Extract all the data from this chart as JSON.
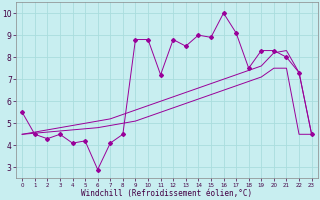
{
  "xlabel": "Windchill (Refroidissement éolien,°C)",
  "x": [
    0,
    1,
    2,
    3,
    4,
    5,
    6,
    7,
    8,
    9,
    10,
    11,
    12,
    13,
    14,
    15,
    16,
    17,
    18,
    19,
    20,
    21,
    22,
    23
  ],
  "y_main": [
    5.5,
    4.5,
    4.3,
    4.5,
    4.1,
    4.2,
    2.9,
    4.1,
    4.5,
    8.8,
    8.8,
    7.2,
    8.8,
    8.5,
    9.0,
    8.9,
    10.0,
    9.1,
    7.5,
    8.3,
    8.3,
    8.0,
    7.3,
    4.5
  ],
  "y_smooth1": [
    4.5,
    4.6,
    4.7,
    4.8,
    4.9,
    5.0,
    5.1,
    5.2,
    5.4,
    5.6,
    5.8,
    6.0,
    6.2,
    6.4,
    6.6,
    6.8,
    7.0,
    7.2,
    7.4,
    7.6,
    8.2,
    8.3,
    7.3,
    4.5
  ],
  "y_smooth2": [
    4.5,
    4.55,
    4.6,
    4.65,
    4.7,
    4.75,
    4.8,
    4.9,
    5.0,
    5.1,
    5.3,
    5.5,
    5.7,
    5.9,
    6.1,
    6.3,
    6.5,
    6.7,
    6.9,
    7.1,
    7.5,
    7.5,
    4.5,
    4.5
  ],
  "line_color": "#990099",
  "bg_color": "#c8eef0",
  "grid_color": "#aadddd",
  "ylim": [
    2.5,
    10.5
  ],
  "xlim": [
    -0.5,
    23.5
  ],
  "yticks": [
    3,
    4,
    5,
    6,
    7,
    8,
    9,
    10
  ]
}
